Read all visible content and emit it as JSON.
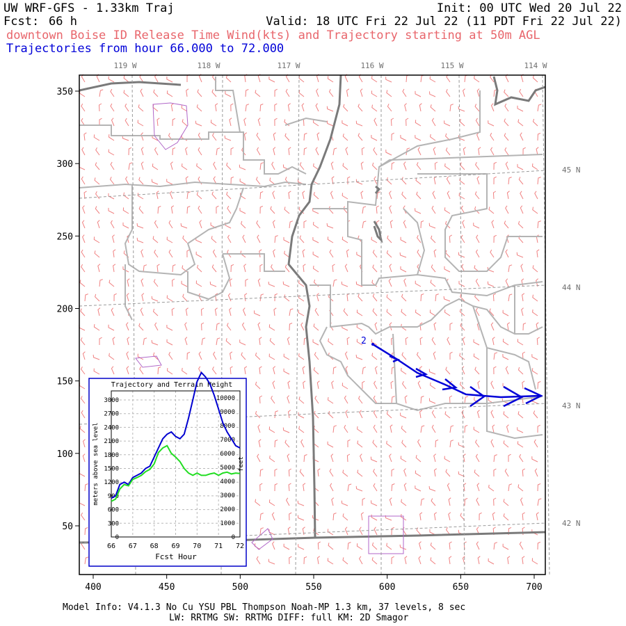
{
  "header": {
    "title": "UW WRF-GFS - 1.33km Traj",
    "init": "Init: 00 UTC Wed 20 Jul 22",
    "fcst_label": "Fcst:",
    "fcst_value": "66 h",
    "valid": "Valid: 18 UTC Fri 22 Jul 22 (11 PDT Fri 22 Jul 22)",
    "subtitle": "downtown Boise ID Release Time Wind(kts) and Trajectory starting at 50m AGL",
    "traj_hours": "Trajectories from hour  66.000 to  72.000"
  },
  "map": {
    "x_ticks": [
      "400",
      "450",
      "500",
      "550",
      "600",
      "650",
      "700"
    ],
    "y_ticks": [
      "50",
      "100",
      "150",
      "200",
      "250",
      "300",
      "350"
    ],
    "lon_labels": [
      "119 W",
      "118 W",
      "117 W",
      "116 W",
      "115 W",
      "114 W"
    ],
    "lat_labels": [
      "45 N",
      "44 N",
      "43 N",
      "42 N"
    ],
    "trajectory_label": "2",
    "trajectory_color": "#0000d8",
    "barb_color": "#f08080",
    "border_color": "#b0b0b0"
  },
  "inset": {
    "title": "Trajectory and Terrain Height",
    "x_ticks": [
      "66",
      "67",
      "68",
      "69",
      "70",
      "71",
      "72"
    ],
    "y_left_ticks": [
      "0",
      "300",
      "600",
      "900",
      "1200",
      "1500",
      "1800",
      "2100",
      "2400",
      "2700",
      "3000"
    ],
    "y_right_ticks": [
      "0",
      "1000",
      "2000",
      "3000",
      "4000",
      "5000",
      "6000",
      "7000",
      "8000",
      "9000",
      "10000"
    ],
    "xlabel": "Fcst Hour",
    "ylabel_left": "meters above sea level",
    "ylabel_right": "feet",
    "series": [
      {
        "color": "#0000d0",
        "x": [
          66.0,
          66.2,
          66.4,
          66.6,
          66.8,
          67.0,
          67.2,
          67.4,
          67.6,
          67.8,
          68.0,
          68.2,
          68.4,
          68.6,
          68.8,
          69.0,
          69.2,
          69.4,
          69.6,
          69.8,
          70.0,
          70.2,
          70.4,
          70.6,
          70.8,
          71.0,
          71.2,
          71.4,
          71.6,
          71.8,
          72.0
        ],
        "y": [
          850,
          900,
          1150,
          1200,
          1150,
          1300,
          1350,
          1400,
          1500,
          1550,
          1750,
          1950,
          2150,
          2250,
          2300,
          2200,
          2150,
          2250,
          2600,
          3000,
          3400,
          3600,
          3500,
          3350,
          3100,
          2800,
          2500,
          2300,
          2150,
          2000,
          1950
        ]
      },
      {
        "color": "#22dd22",
        "x": [
          66.0,
          66.2,
          66.4,
          66.6,
          66.8,
          67.0,
          67.2,
          67.4,
          67.6,
          67.8,
          68.0,
          68.2,
          68.4,
          68.6,
          68.8,
          69.0,
          69.2,
          69.4,
          69.6,
          69.8,
          70.0,
          70.2,
          70.4,
          70.6,
          70.8,
          71.0,
          71.2,
          71.4,
          71.6,
          71.8,
          72.0
        ],
        "y": [
          780,
          830,
          1050,
          1150,
          1120,
          1260,
          1300,
          1350,
          1430,
          1480,
          1600,
          1850,
          1950,
          2000,
          1830,
          1750,
          1650,
          1500,
          1400,
          1350,
          1400,
          1350,
          1350,
          1380,
          1400,
          1350,
          1400,
          1420,
          1380,
          1400,
          1390
        ]
      }
    ]
  },
  "footer": {
    "line1": "Model Info: V4.1.3    No Cu    YSU PBL   Thompson     Noah-MP    1.3 km,  37 levels,     8 sec",
    "line2": "LW: RRTMG SW: RRTMG    DIFF: full    KM: 2D Smagor"
  }
}
